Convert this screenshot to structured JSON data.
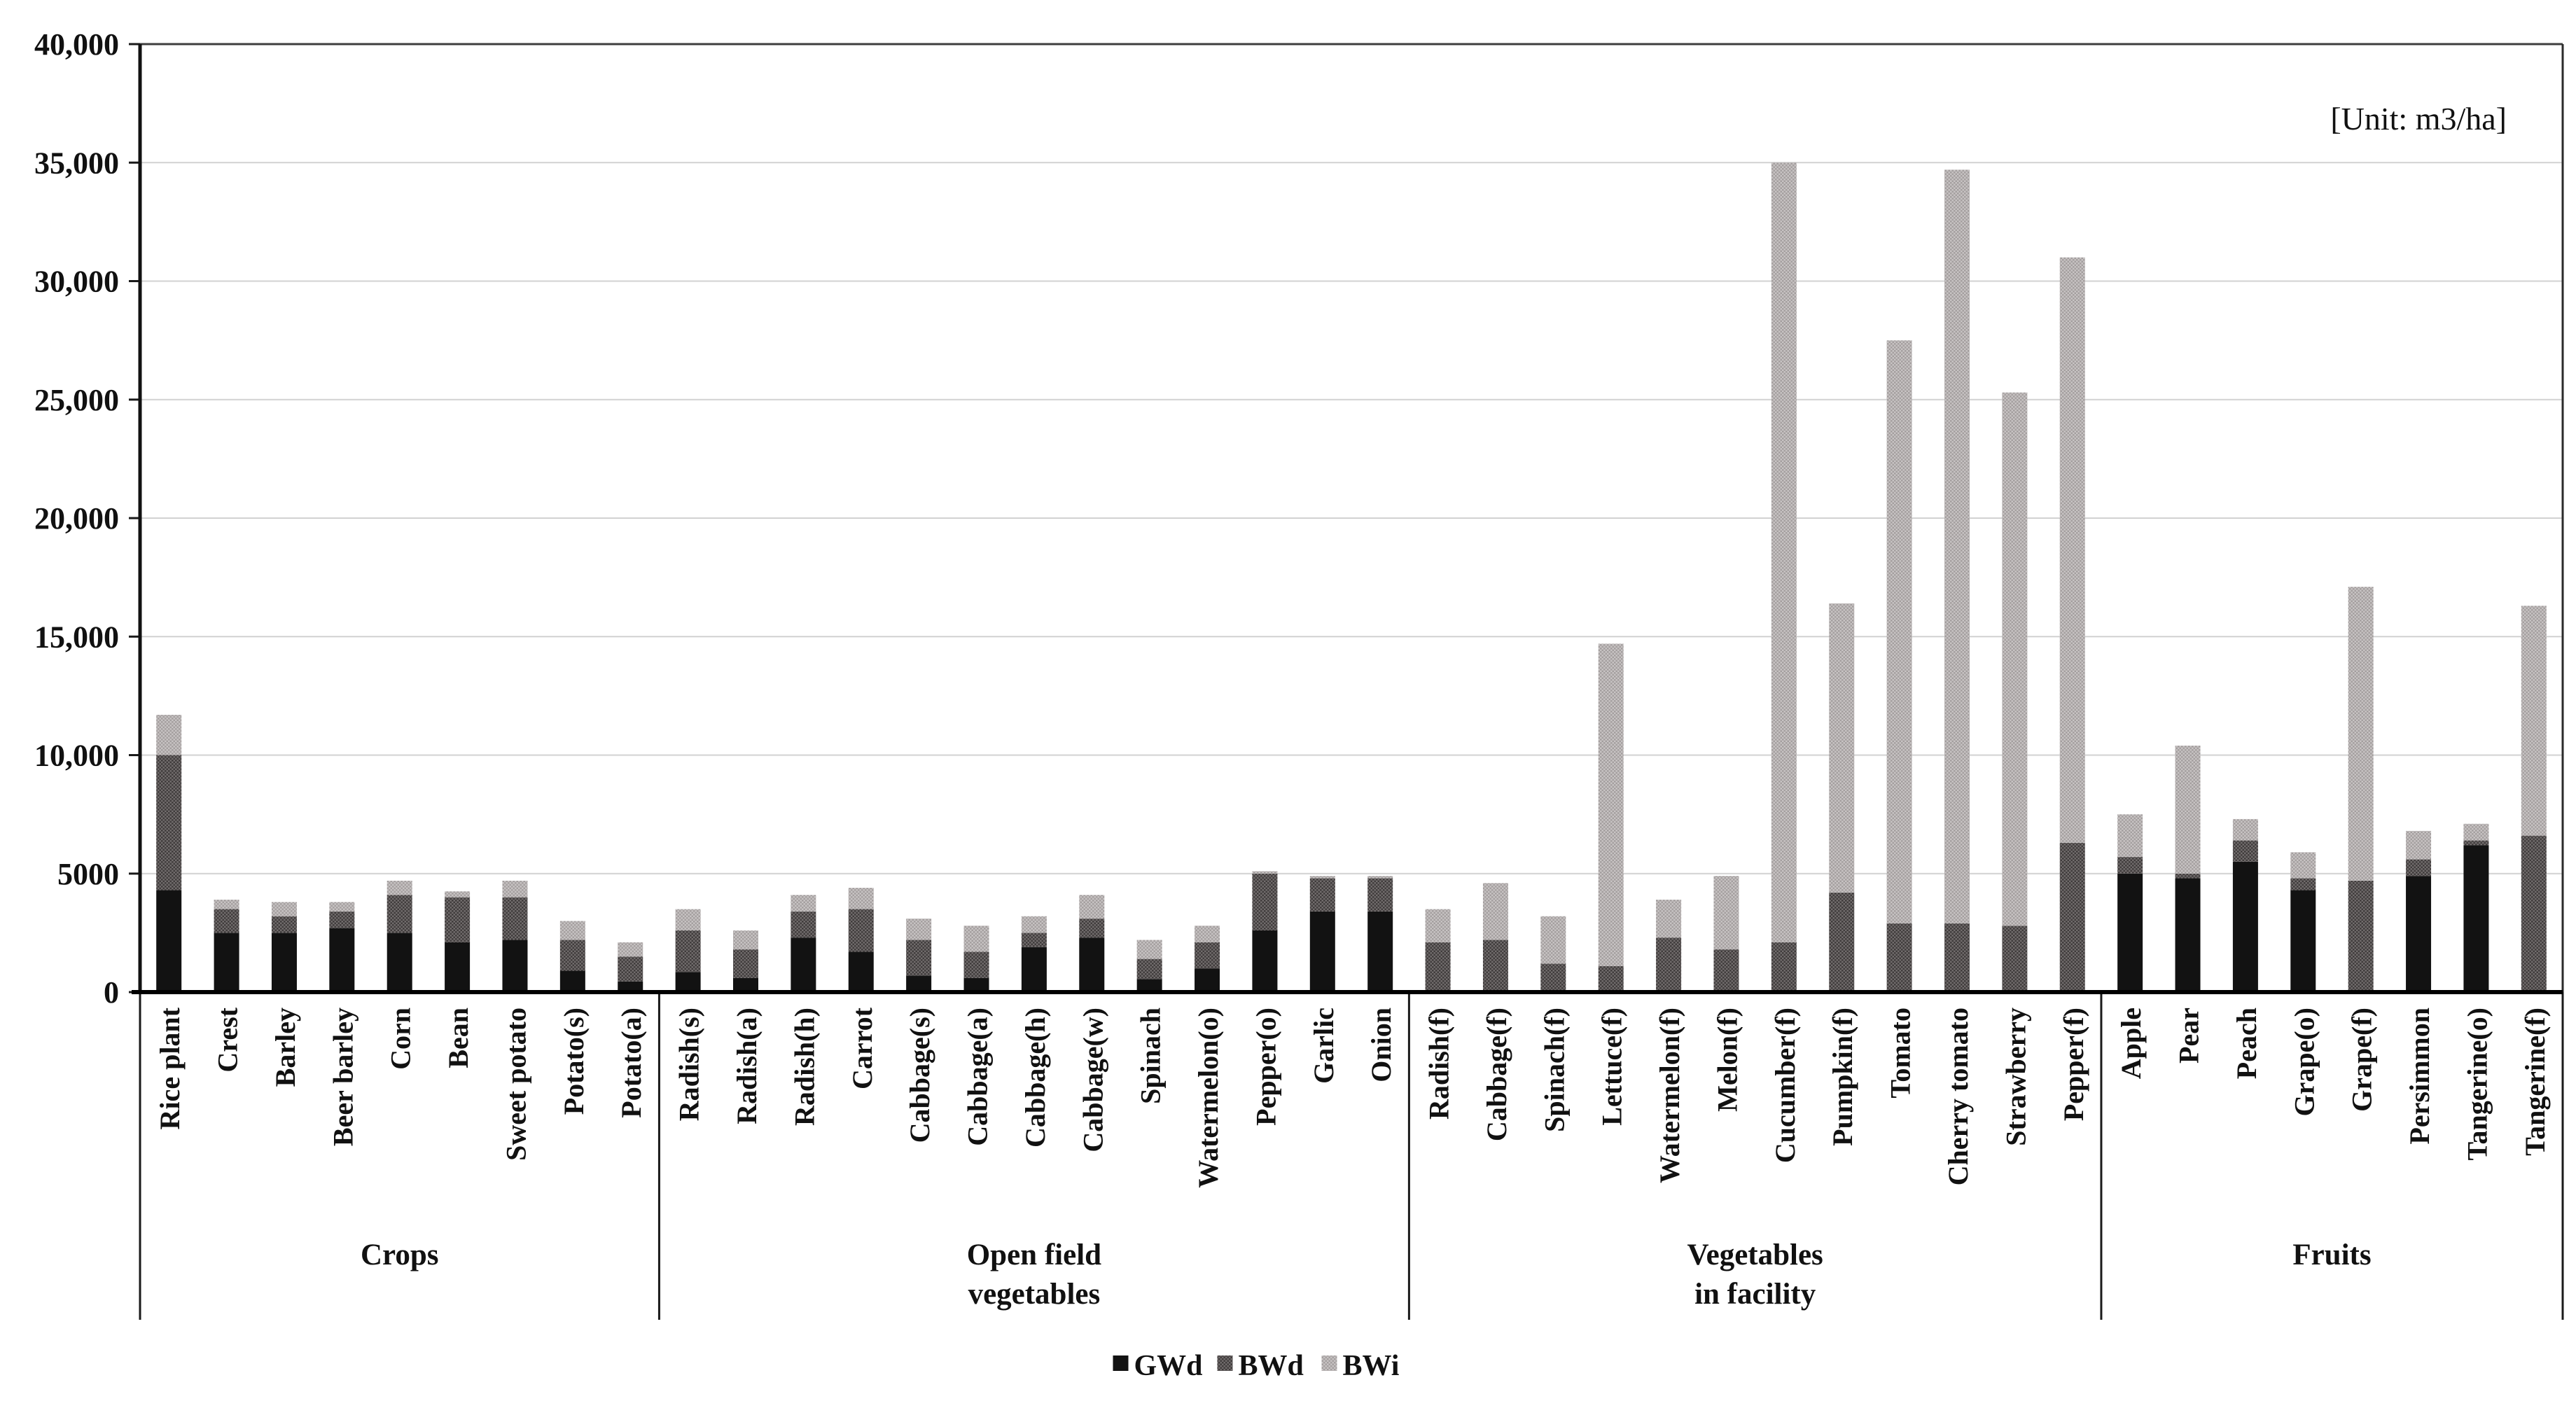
{
  "page": {
    "background": "#ffffff"
  },
  "chart_data": {
    "type": "bar",
    "stacked": true,
    "title": "",
    "unit_label": "[Unit: m3/ha]",
    "xlabel": "",
    "ylabel": "",
    "ylim": [
      0,
      40000
    ],
    "ytick_step": 5000,
    "ytick_labels": [
      "0",
      "5000",
      "10,000",
      "15,000",
      "20,000",
      "25,000",
      "30,000",
      "35,000",
      "40,000"
    ],
    "grid": "horizontal",
    "legend": {
      "position": "bottom-center",
      "entries": [
        "GWd",
        "BWd",
        "BWi"
      ]
    },
    "colors": {
      "GWd": "#121212",
      "BWd": "#5e5a5a",
      "BWi": "#b6b2b2"
    },
    "groups": [
      {
        "label_lines": [
          "Crops"
        ],
        "categories": [
          "Rice plant",
          "Crest",
          "Barley",
          "Beer barley",
          "Corn",
          "Bean",
          "Sweet potato",
          "Potato(s)",
          "Potato(a)"
        ]
      },
      {
        "label_lines": [
          "Open field",
          "vegetables"
        ],
        "categories": [
          "Radish(s)",
          "Radish(a)",
          "Radish(h)",
          "Carrot",
          "Cabbage(s)",
          "Cabbage(a)",
          "Cabbage(h)",
          "Cabbage(w)",
          "Spinach",
          "Watermelon(o)",
          "Pepper(o)",
          "Garlic",
          "Onion"
        ]
      },
      {
        "label_lines": [
          "Vegetables",
          "in facility"
        ],
        "categories": [
          "Radish(f)",
          "Cabbage(f)",
          "Spinach(f)",
          "Lettuce(f)",
          "Watermelon(f)",
          "Melon(f)",
          "Cucumber(f)",
          "Pumpkin(f)",
          "Tomato",
          "Cherry tomato",
          "Strawberry",
          "Pepper(f)"
        ]
      },
      {
        "label_lines": [
          "Fruits"
        ],
        "categories": [
          "Apple",
          "Pear",
          "Peach",
          "Grape(o)",
          "Grape(f)",
          "Persimmon",
          "Tangerine(o)",
          "Tangerine(f)"
        ]
      }
    ],
    "series": [
      {
        "name": "GWd",
        "values": [
          4300,
          2500,
          2500,
          2700,
          2500,
          2100,
          2200,
          900,
          450,
          850,
          600,
          2300,
          1700,
          700,
          600,
          1900,
          2300,
          550,
          1000,
          2600,
          3400,
          3400,
          0,
          0,
          0,
          0,
          0,
          0,
          0,
          0,
          0,
          0,
          0,
          0,
          5000,
          4800,
          5500,
          4300,
          0,
          4900,
          6200,
          0
        ]
      },
      {
        "name": "BWd",
        "values": [
          5700,
          1000,
          700,
          700,
          1600,
          1900,
          1800,
          1300,
          1050,
          1750,
          1200,
          1100,
          1800,
          1500,
          1100,
          600,
          800,
          850,
          1100,
          2400,
          1400,
          1400,
          2100,
          2200,
          1200,
          1100,
          2300,
          1800,
          2100,
          4200,
          2900,
          2900,
          2800,
          6300,
          700,
          200,
          900,
          500,
          4700,
          700,
          200,
          6600
        ]
      },
      {
        "name": "BWi",
        "values": [
          1700,
          400,
          600,
          400,
          600,
          250,
          700,
          800,
          600,
          900,
          800,
          700,
          900,
          900,
          1100,
          700,
          1000,
          800,
          700,
          100,
          100,
          100,
          1400,
          2400,
          2000,
          13600,
          1600,
          3100,
          32900,
          12200,
          24600,
          31800,
          22500,
          24700,
          1800,
          5400,
          900,
          1100,
          12400,
          1200,
          700,
          9700
        ]
      }
    ]
  }
}
